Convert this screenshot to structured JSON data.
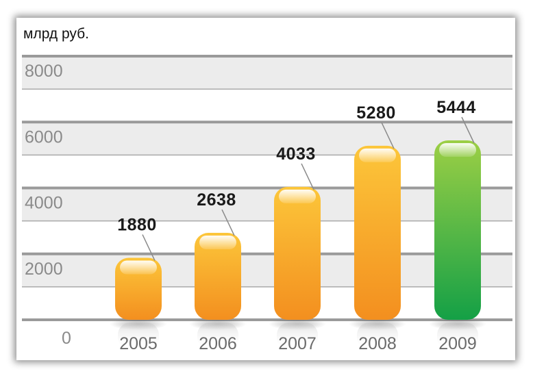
{
  "chart_data": {
    "type": "bar",
    "unit_label": "млрд руб.",
    "categories": [
      "2005",
      "2006",
      "2007",
      "2008",
      "2009"
    ],
    "values": [
      1880,
      2638,
      4033,
      5280,
      5444
    ],
    "value_labels": [
      "1880",
      "2638",
      "4033",
      "5280",
      "5444"
    ],
    "yticks": [
      0,
      2000,
      4000,
      6000,
      8000
    ],
    "ytick_labels": [
      "0",
      "2000",
      "4000",
      "6000",
      "8000"
    ],
    "ylim": [
      0,
      8000
    ],
    "grid": true,
    "colors": {
      "orange_top": "#fcc63a",
      "orange_bottom": "#f38f1f",
      "green_top": "#9ccf45",
      "green_bottom": "#14a046",
      "highlight_index": 4
    }
  }
}
